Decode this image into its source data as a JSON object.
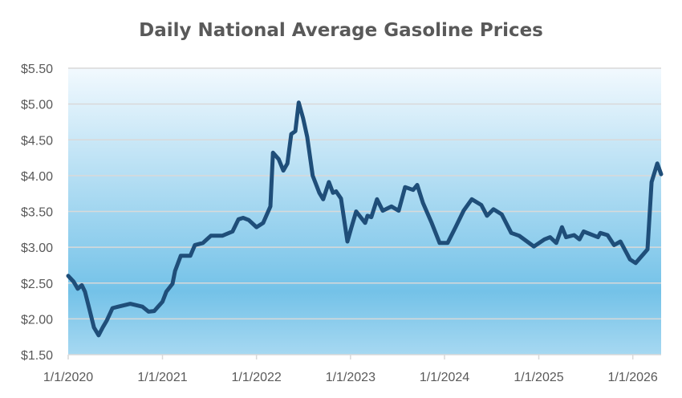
{
  "chart_data": {
    "type": "line",
    "title": "Daily National Average Gasoline Prices",
    "xlabel": "",
    "ylabel": "",
    "ylim": [
      1.5,
      5.5
    ],
    "xlim": [
      "2020-01-01",
      "2026-04-21"
    ],
    "y_ticks": [
      "$1.50",
      "$2.00",
      "$2.50",
      "$3.00",
      "$3.50",
      "$4.00",
      "$4.50",
      "$5.00",
      "$5.50"
    ],
    "y_tick_values": [
      1.5,
      2.0,
      2.5,
      3.0,
      3.5,
      4.0,
      4.5,
      5.0,
      5.5
    ],
    "x_ticks": [
      "1/1/2020",
      "1/1/2021",
      "1/1/2022",
      "1/1/2023",
      "1/1/2024",
      "1/1/2025",
      "1/1/2026"
    ],
    "x_tick_values": [
      "2020-01-01",
      "2021-01-01",
      "2022-01-01",
      "2023-01-01",
      "2024-01-01",
      "2025-01-01",
      "2026-01-01"
    ],
    "grid": "horizontal",
    "legend": "none",
    "colors": {
      "line": "#1F4E79",
      "background_top": "#F2F9FE",
      "background_mid": "#74C2E8",
      "background_bottom": "#A6D8F1",
      "grid": "#D9D9D9",
      "text": "#595959"
    },
    "series": [
      {
        "x": [
          "2020-01-01",
          "2020-01-22",
          "2020-02-07",
          "2020-02-23",
          "2020-03-06",
          "2020-03-25",
          "2020-04-10",
          "2020-04-28",
          "2020-05-14",
          "2020-05-30",
          "2020-06-21",
          "2020-07-13",
          "2020-08-29",
          "2020-10-15",
          "2020-11-08",
          "2020-11-30",
          "2021-01-01",
          "2021-01-16",
          "2021-02-09",
          "2021-02-19",
          "2021-03-13",
          "2021-04-19",
          "2021-05-07",
          "2021-06-07",
          "2021-07-08",
          "2021-08-21",
          "2021-09-30",
          "2021-10-23",
          "2021-11-10",
          "2021-12-02",
          "2022-01-01",
          "2022-01-27",
          "2022-02-24",
          "2022-03-06",
          "2022-03-28",
          "2022-04-15",
          "2022-05-01",
          "2022-05-16",
          "2022-06-01",
          "2022-06-14",
          "2022-07-01",
          "2022-07-17",
          "2022-08-07",
          "2022-09-02",
          "2022-09-17",
          "2022-10-09",
          "2022-10-25",
          "2022-11-06",
          "2022-11-25",
          "2022-12-20",
          "2023-01-05",
          "2023-01-23",
          "2023-02-27",
          "2023-03-08",
          "2023-03-23",
          "2023-04-14",
          "2023-05-06",
          "2023-06-09",
          "2023-07-07",
          "2023-08-01",
          "2023-09-01",
          "2023-09-17",
          "2023-10-09",
          "2023-11-12",
          "2023-12-13",
          "2024-01-13",
          "2024-02-13",
          "2024-03-15",
          "2024-04-16",
          "2024-05-23",
          "2024-06-14",
          "2024-07-09",
          "2024-08-10",
          "2024-09-16",
          "2024-10-17",
          "2024-12-13",
          "2025-01-23",
          "2025-02-14",
          "2025-03-10",
          "2025-04-01",
          "2025-04-17",
          "2025-05-18",
          "2025-06-08",
          "2025-06-24",
          "2025-08-19",
          "2025-08-28",
          "2025-09-25",
          "2025-10-20",
          "2025-11-14",
          "2025-12-21",
          "2026-01-12",
          "2026-02-15",
          "2026-02-27",
          "2026-03-15",
          "2026-04-06",
          "2026-04-21"
        ],
        "values": [
          2.6,
          2.52,
          2.42,
          2.47,
          2.38,
          2.11,
          1.88,
          1.77,
          1.88,
          1.98,
          2.15,
          2.17,
          2.21,
          2.17,
          2.1,
          2.11,
          2.24,
          2.38,
          2.49,
          2.67,
          2.88,
          2.88,
          3.03,
          3.06,
          3.16,
          3.16,
          3.22,
          3.39,
          3.41,
          3.38,
          3.28,
          3.34,
          3.57,
          4.32,
          4.23,
          4.07,
          4.17,
          4.58,
          4.62,
          5.02,
          4.8,
          4.54,
          4.0,
          3.76,
          3.67,
          3.91,
          3.76,
          3.78,
          3.68,
          3.08,
          3.28,
          3.5,
          3.34,
          3.44,
          3.42,
          3.67,
          3.51,
          3.57,
          3.51,
          3.84,
          3.8,
          3.87,
          3.62,
          3.34,
          3.06,
          3.06,
          3.28,
          3.51,
          3.67,
          3.59,
          3.44,
          3.53,
          3.46,
          3.2,
          3.16,
          3.01,
          3.11,
          3.14,
          3.06,
          3.28,
          3.14,
          3.17,
          3.11,
          3.22,
          3.14,
          3.2,
          3.17,
          3.03,
          3.08,
          2.83,
          2.78,
          2.92,
          2.97,
          3.91,
          4.17,
          4.02
        ]
      }
    ]
  }
}
